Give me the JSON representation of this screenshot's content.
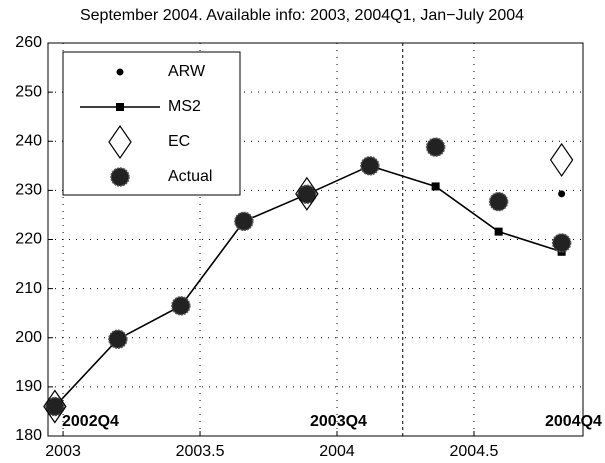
{
  "chart_data": {
    "type": "line",
    "title": "September 2004. Available info: 2003, 2004Q1, Jan−July 2004",
    "x": [
      2002.97,
      2003.2,
      2003.43,
      2003.66,
      2003.89,
      2004.12,
      2004.36,
      2004.59,
      2004.82
    ],
    "series": [
      {
        "name": "ARW",
        "color": "#000000",
        "marker": "dot",
        "line": false,
        "values": [
          null,
          null,
          null,
          null,
          null,
          null,
          null,
          null,
          229.3
        ]
      },
      {
        "name": "MS2",
        "color": "#000000",
        "marker": "square",
        "line": true,
        "values": [
          186,
          199.7,
          206.5,
          223.7,
          229.2,
          235,
          230.8,
          221.6,
          217.5
        ]
      },
      {
        "name": "EC",
        "color": "#000000",
        "marker": "diamond",
        "line": false,
        "values": [
          186,
          null,
          null,
          null,
          229.3,
          null,
          null,
          null,
          236.2
        ]
      },
      {
        "name": "Actual",
        "color": "#222222",
        "marker": "circle",
        "line": false,
        "values": [
          186,
          199.7,
          206.5,
          223.7,
          229.2,
          235,
          238.8,
          227.7,
          219.3
        ]
      }
    ],
    "annotations": [
      "2002Q4",
      "2003Q4",
      "2004Q4"
    ],
    "vline": 2004.24,
    "xlim": [
      2002.945,
      2004.898
    ],
    "ylim": [
      180,
      260
    ],
    "xticks": [
      2003,
      2003.5,
      2004,
      2004.5
    ],
    "yticks": [
      180,
      190,
      200,
      210,
      220,
      230,
      240,
      250,
      260
    ],
    "grid": true,
    "legend": "upper left"
  }
}
